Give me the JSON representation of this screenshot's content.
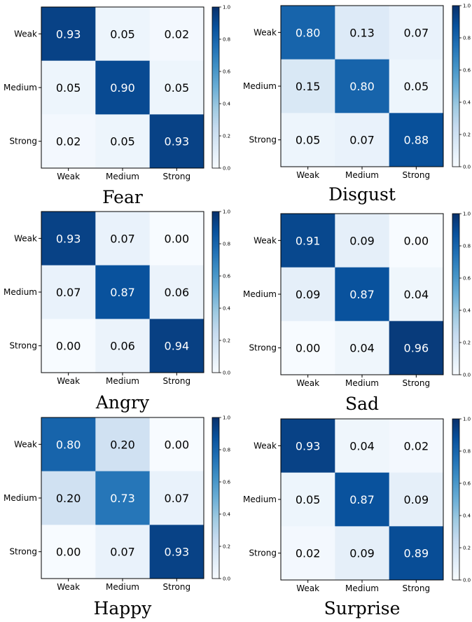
{
  "colorbar": {
    "low_color": "#f7fbff",
    "high_color": "#08306b",
    "ticks": [
      "0.0",
      "0.2",
      "0.4",
      "0.6",
      "0.8",
      "1.0"
    ]
  },
  "chart_data": [
    {
      "type": "heatmap",
      "title": "Fear",
      "rows": [
        "Weak",
        "Medium",
        "Strong"
      ],
      "columns": [
        "Weak",
        "Medium",
        "Strong"
      ],
      "values": [
        [
          0.93,
          0.05,
          0.02
        ],
        [
          0.05,
          0.9,
          0.05
        ],
        [
          0.02,
          0.05,
          0.93
        ]
      ],
      "vlim": [
        0,
        1
      ]
    },
    {
      "type": "heatmap",
      "title": "Disgust",
      "rows": [
        "Weak",
        "Medium",
        "Strong"
      ],
      "columns": [
        "Weak",
        "Medium",
        "Strong"
      ],
      "values": [
        [
          0.8,
          0.13,
          0.07
        ],
        [
          0.15,
          0.8,
          0.05
        ],
        [
          0.05,
          0.07,
          0.88
        ]
      ],
      "vlim": [
        0,
        1
      ]
    },
    {
      "type": "heatmap",
      "title": "Angry",
      "rows": [
        "Weak",
        "Medium",
        "Strong"
      ],
      "columns": [
        "Weak",
        "Medium",
        "Strong"
      ],
      "values": [
        [
          0.93,
          0.07,
          0.0
        ],
        [
          0.07,
          0.87,
          0.06
        ],
        [
          0.0,
          0.06,
          0.94
        ]
      ],
      "vlim": [
        0,
        1
      ]
    },
    {
      "type": "heatmap",
      "title": "Sad",
      "rows": [
        "Weak",
        "Medium",
        "Strong"
      ],
      "columns": [
        "Weak",
        "Medium",
        "Strong"
      ],
      "values": [
        [
          0.91,
          0.09,
          0.0
        ],
        [
          0.09,
          0.87,
          0.04
        ],
        [
          0.0,
          0.04,
          0.96
        ]
      ],
      "vlim": [
        0,
        1
      ]
    },
    {
      "type": "heatmap",
      "title": "Happy",
      "rows": [
        "Weak",
        "Medium",
        "Strong"
      ],
      "columns": [
        "Weak",
        "Medium",
        "Strong"
      ],
      "values": [
        [
          0.8,
          0.2,
          0.0
        ],
        [
          0.2,
          0.73,
          0.07
        ],
        [
          0.0,
          0.07,
          0.93
        ]
      ],
      "vlim": [
        0,
        1
      ]
    },
    {
      "type": "heatmap",
      "title": "Surprise",
      "rows": [
        "Weak",
        "Medium",
        "Strong"
      ],
      "columns": [
        "Weak",
        "Medium",
        "Strong"
      ],
      "values": [
        [
          0.93,
          0.04,
          0.02
        ],
        [
          0.05,
          0.87,
          0.09
        ],
        [
          0.02,
          0.09,
          0.89
        ]
      ],
      "vlim": [
        0,
        1
      ]
    }
  ]
}
